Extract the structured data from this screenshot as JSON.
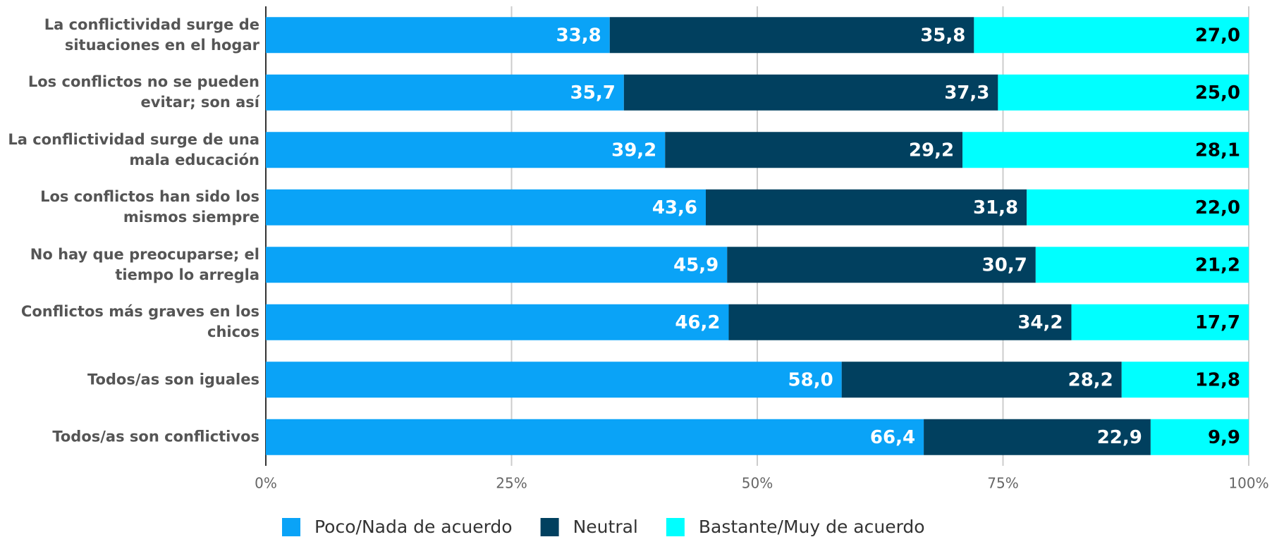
{
  "chart_data": {
    "type": "bar",
    "orientation": "horizontal",
    "stacked": "percent",
    "categories": [
      "La conflictividad surge de situaciones en el hogar",
      "Los conflictos no se pueden evitar; son así",
      "La conflictividad surge de una mala educación",
      "Los conflictos han sido los mismos siempre",
      "No hay que preocuparse; el tiempo lo arregla",
      "Conflictos más graves en los chicos",
      "Todos/as son iguales",
      "Todos/as son conflictivos"
    ],
    "series": [
      {
        "name": "Poco/Nada de acuerdo",
        "color": "#0aa3f7",
        "label_color": "#ffffff",
        "values": [
          33.8,
          35.7,
          39.2,
          43.6,
          45.9,
          46.2,
          58.0,
          66.4
        ],
        "value_labels": [
          "33,8",
          "35,7",
          "39,2",
          "43,6",
          "45,9",
          "46,2",
          "58,0",
          "66,4"
        ]
      },
      {
        "name": "Neutral",
        "color": "#01405f",
        "label_color": "#ffffff",
        "values": [
          35.8,
          37.3,
          29.2,
          31.8,
          30.7,
          34.2,
          28.2,
          22.9
        ],
        "value_labels": [
          "35,8",
          "37,3",
          "29,2",
          "31,8",
          "30,7",
          "34,2",
          "28,2",
          "22,9"
        ]
      },
      {
        "name": "Bastante/Muy de acuerdo",
        "color": "#00ffff",
        "label_color": "#000000",
        "values": [
          27.0,
          25.0,
          28.1,
          22.0,
          21.2,
          17.7,
          12.8,
          9.9
        ],
        "value_labels": [
          "27,0",
          "25,0",
          "28,1",
          "22,0",
          "21,2",
          "17,7",
          "12,8",
          "9,9"
        ]
      }
    ],
    "xlim": [
      0,
      100
    ],
    "xticks": [
      {
        "value": 0,
        "label": "0%"
      },
      {
        "value": 25,
        "label": "25%"
      },
      {
        "value": 50,
        "label": "50%"
      },
      {
        "value": 75,
        "label": "75%"
      },
      {
        "value": 100,
        "label": "100%"
      }
    ],
    "grid": true,
    "legend": "bottom"
  }
}
